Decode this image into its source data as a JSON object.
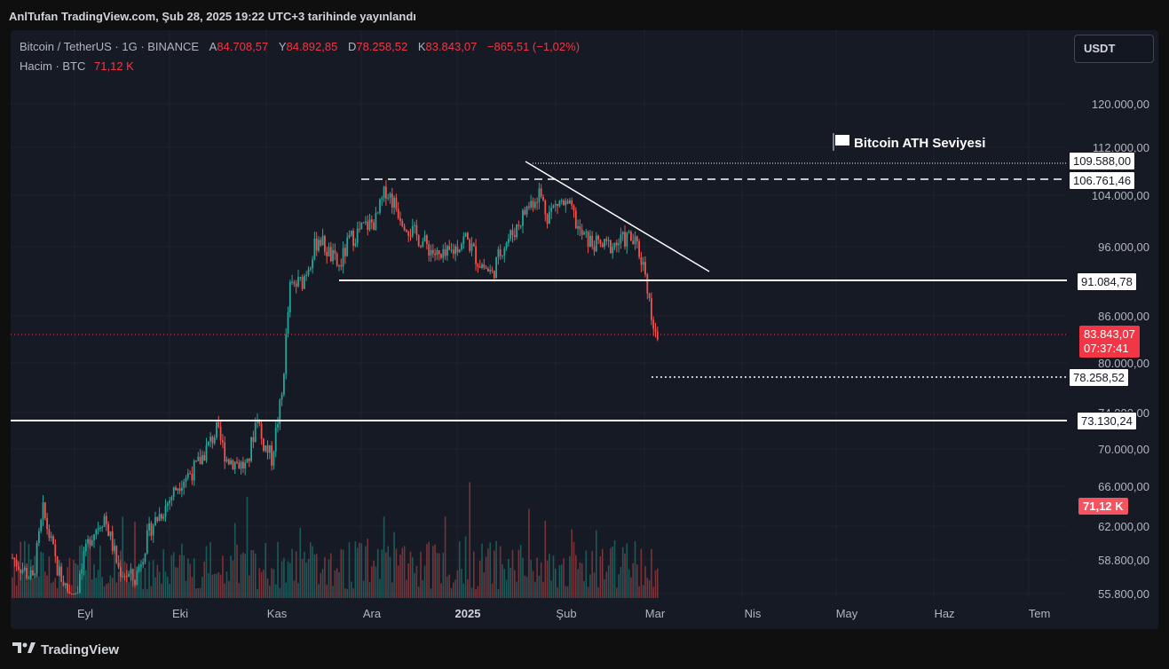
{
  "header": {
    "published": "AnlTufan TradingView.com, Şub 28, 2025 19:22 UTC+3 tarihinde yayınlandı"
  },
  "legend": {
    "symbol": "Bitcoin / TetherUS · 1G · BINANCE",
    "open_label": "A",
    "open": "84.708,57",
    "high_label": "Y",
    "high": "84.892,85",
    "low_label": "D",
    "low": "78.258,52",
    "close_label": "K",
    "close": "83.843,07",
    "change": "−865,51 (−1,02%)",
    "volume_label": "Hacim · BTC",
    "volume": "71,12 K"
  },
  "currency_button": "USDT",
  "price_axis": [
    "120.000,00",
    "112.000,00",
    "104.000,00",
    "96.000,00",
    "86.000,00",
    "80.000,00",
    "74.000,00",
    "70.000,00",
    "66.000,00",
    "62.000,00",
    "58.800,00",
    "55.800,00"
  ],
  "levels": {
    "ath": "109.588,00",
    "resistance": "106.761,46",
    "support1": "91.084,78",
    "current": "83.843,07",
    "countdown": "07:37:41",
    "low": "78.258,52",
    "support2": "73.130,24",
    "volume_tag": "71,12 K"
  },
  "annotation": {
    "ath_text": "Bitcoin ATH Seviyesi",
    "icon": "flag-icon"
  },
  "time_axis": [
    "Eyl",
    "Eki",
    "Kas",
    "Ara",
    "2025",
    "Şub",
    "Mar",
    "Nis",
    "May",
    "Haz",
    "Tem"
  ],
  "footer": {
    "brand": "TradingView",
    "icon": "tradingview-logo-icon"
  },
  "colors": {
    "up": "#26a69a",
    "down": "#ef5350",
    "background": "#161a25",
    "accent": "#f23645"
  }
}
